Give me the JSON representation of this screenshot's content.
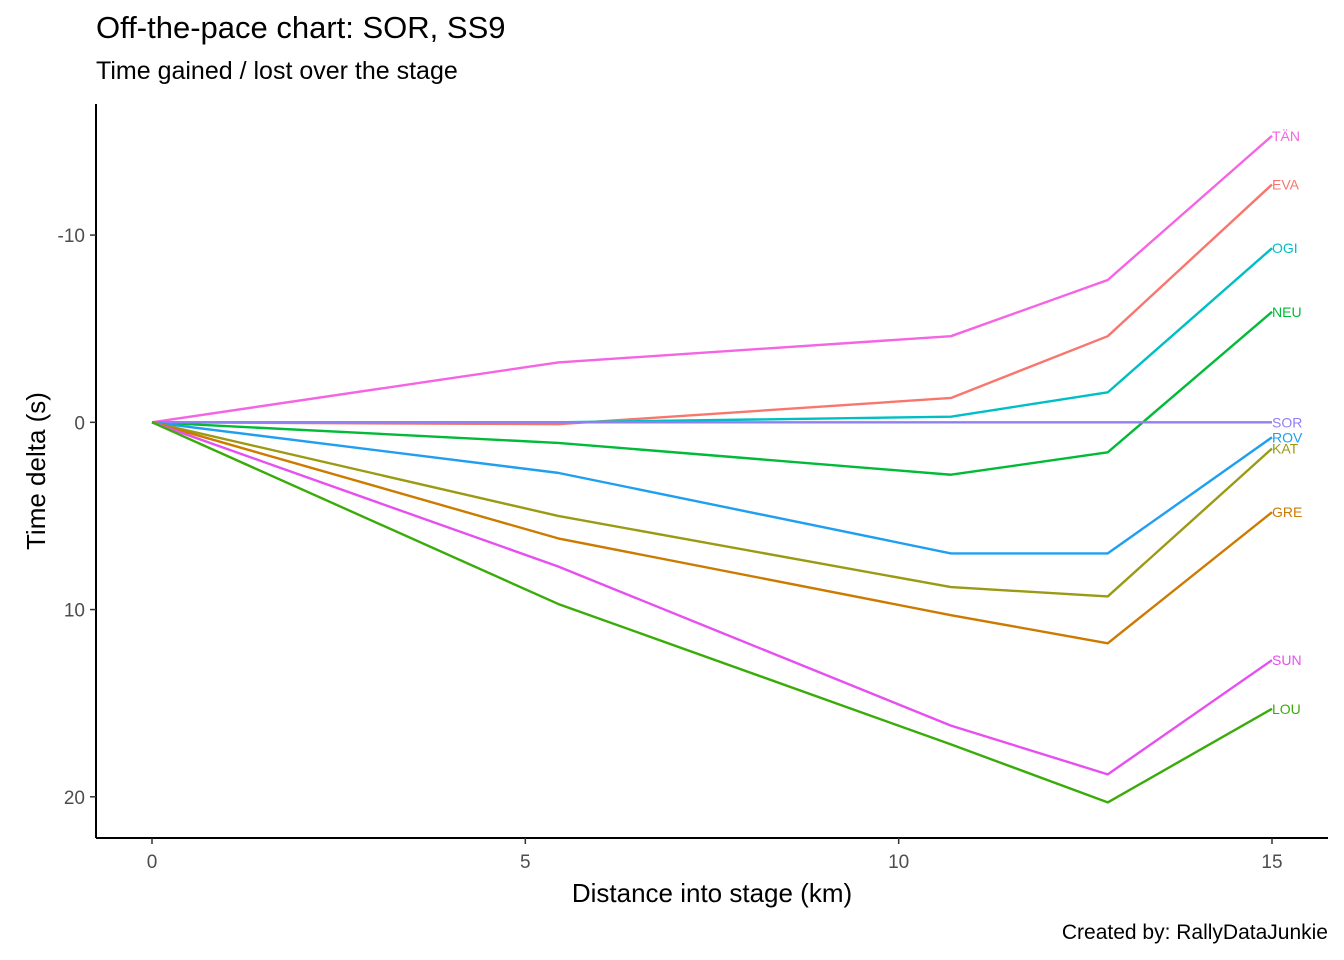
{
  "chart_data": {
    "type": "line",
    "title": "Off-the-pace chart: SOR, SS9",
    "subtitle": "Time gained / lost over the stage",
    "caption": "Created by: RallyDataJunkie",
    "xlabel": "Distance into stage (km)",
    "ylabel": "Time delta (s)",
    "xlim": [
      -0.75,
      15.75
    ],
    "ylim": [
      -17,
      22.2
    ],
    "y_reversed": true,
    "x_ticks": [
      0,
      5,
      10,
      15
    ],
    "y_ticks": [
      -10,
      0,
      10,
      20
    ],
    "x_tick_labels": [
      "0",
      "5",
      "10",
      "15"
    ],
    "y_tick_labels": [
      "-10",
      "0",
      "10",
      "20"
    ],
    "grid": false,
    "legend": "none",
    "x": [
      0,
      5.44,
      10.7,
      12.8,
      15.0
    ],
    "series": [
      {
        "name": "TÄN",
        "color": "#f564e3",
        "values": [
          0,
          -3.2,
          -4.6,
          -7.6,
          -15.3
        ]
      },
      {
        "name": "EVA",
        "color": "#f8766d",
        "values": [
          0,
          0.1,
          -1.3,
          -4.6,
          -12.7
        ]
      },
      {
        "name": "OGI",
        "color": "#00bfc4",
        "values": [
          0,
          0.0,
          -0.3,
          -1.6,
          -9.3
        ]
      },
      {
        "name": "NEU",
        "color": "#00ba38",
        "values": [
          0,
          1.1,
          2.8,
          1.6,
          -5.9
        ]
      },
      {
        "name": "SOR",
        "color": "#8f7ff5",
        "values": [
          0,
          0,
          0,
          0,
          0
        ]
      },
      {
        "name": "ROV",
        "color": "#209ff0",
        "values": [
          0,
          2.7,
          7.0,
          7.0,
          0.8
        ]
      },
      {
        "name": "KAT",
        "color": "#9a9a14",
        "values": [
          0,
          5.0,
          8.8,
          9.3,
          1.4
        ]
      },
      {
        "name": "GRE",
        "color": "#cc7a00",
        "values": [
          0,
          6.2,
          10.3,
          11.8,
          4.8
        ]
      },
      {
        "name": "SUN",
        "color": "#e64ff0",
        "values": [
          0,
          7.7,
          16.2,
          18.8,
          12.7
        ]
      },
      {
        "name": "LOU",
        "color": "#3aac0a",
        "values": [
          0,
          9.7,
          17.2,
          20.3,
          15.3
        ]
      }
    ]
  }
}
